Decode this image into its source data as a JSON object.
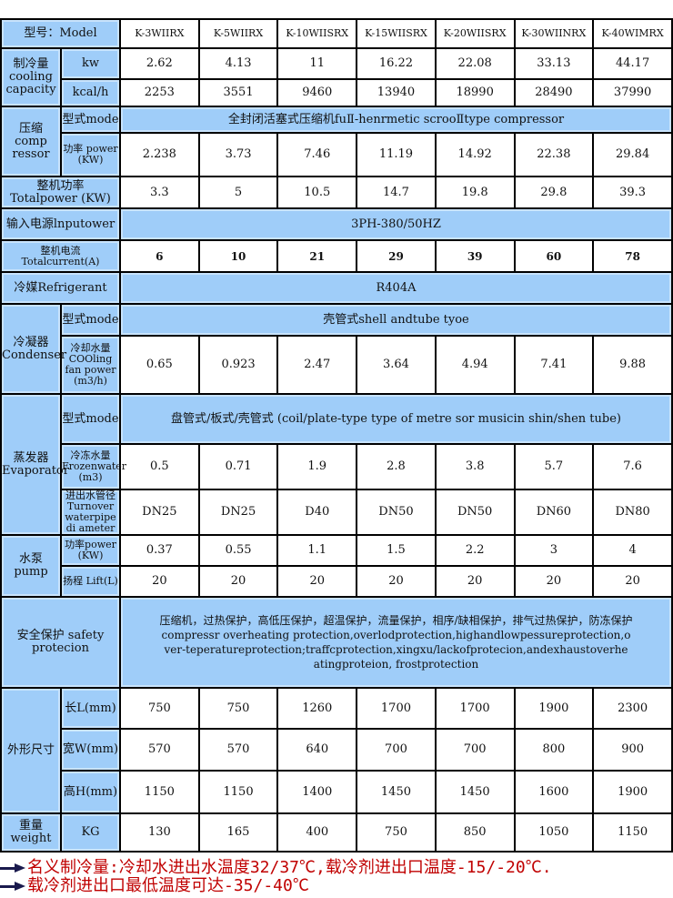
{
  "colors": {
    "header_fill": "#9fcdf9",
    "note_text": "#c00000",
    "border": "#000000"
  },
  "header": {
    "label": "型号：Model",
    "models": [
      "K-3WIIRX",
      "K-5WIIRX",
      "K-10WIISRX",
      "K-15WIISRX",
      "K-20WIISRX",
      "K-30WIINRX",
      "K-40WIMRX"
    ]
  },
  "cooling": {
    "label": "制冷量 cooling capacity",
    "kw_label": "kw",
    "kw": [
      "2.62",
      "4.13",
      "11",
      "16.22",
      "22.08",
      "33.13",
      "44.17"
    ],
    "kcal_label": "kcal/h",
    "kcal": [
      "2253",
      "3551",
      "9460",
      "13940",
      "18990",
      "28490",
      "37990"
    ]
  },
  "compressor": {
    "label": "压缩 comp ressor",
    "mode_label": "型式mode",
    "mode": "全封闭活塞式压缩机fuⅡ-henrmetic scrooⅡtype compressor",
    "power_label": "功率 power (KW)",
    "power": [
      "2.238",
      "3.73",
      "7.46",
      "11.19",
      "14.92",
      "22.38",
      "29.84"
    ]
  },
  "total_power": {
    "label": "整机功率 Totalpower (KW)",
    "values": [
      "3.3",
      "5",
      "10.5",
      "14.7",
      "19.8",
      "29.8",
      "39.3"
    ]
  },
  "input_power": {
    "label": "输入电源lnputower",
    "value": "3PH-380/50HZ"
  },
  "total_current": {
    "label": "整机电流Totalcurrent(A)",
    "values": [
      "6",
      "10",
      "21",
      "29",
      "39",
      "60",
      "78"
    ]
  },
  "refrigerant": {
    "label": "冷媒Refrigerant",
    "value": "R404A"
  },
  "condenser": {
    "label": "冷凝器 Condenser",
    "mode_label": "型式mode",
    "mode": "壳管式shell andtube tyoe",
    "water_label": "冷却水量 COOling fan power (m3/h)",
    "water": [
      "0.65",
      "0.923",
      "2.47",
      "3.64",
      "4.94",
      "7.41",
      "9.88"
    ]
  },
  "evaporator": {
    "label": "蒸发器 Evaporator",
    "mode_label": "型式mode",
    "mode": "盘管式/板式/壳管式 (coil/plate-type type of metre sor musicin shin/shen tube)",
    "frozen_label": "冷冻水量 Frozenwater (m3)",
    "frozen": [
      "0.5",
      "0.71",
      "1.9",
      "2.8",
      "3.8",
      "5.7",
      "7.6"
    ],
    "pipe_label": "进出水管径 Turnover waterpipe di ameter",
    "pipe": [
      "DN25",
      "DN25",
      "D40",
      "DN50",
      "DN50",
      "DN60",
      "DN80"
    ]
  },
  "pump": {
    "label": "水泵 pump",
    "power_label": "功率power (KW)",
    "power": [
      "0.37",
      "0.55",
      "1.1",
      "1.5",
      "2.2",
      "3",
      "4"
    ],
    "lift_label": "扬程 Lift(L)",
    "lift": [
      "20",
      "20",
      "20",
      "20",
      "20",
      "20",
      "20"
    ]
  },
  "safety": {
    "label": "安全保护 safety protecion",
    "value_cn": "压缩机，过热保护，高低压保护，超温保护，流量保护，相序/缺相保护，排气过热保护，防冻保护",
    "value_en": "compressr overheating protection,overlodprotection,highandlowpessureprotection,over-teperatureprotection;traffcprotection,xingxu/lackofprotecion,andexhaustoverheatingproteion,     frostprotection"
  },
  "dimensions": {
    "label": "外形尺寸",
    "length_label": "长L(mm)",
    "length": [
      "750",
      "750",
      "1260",
      "1700",
      "1700",
      "1900",
      "2300"
    ],
    "width_label": "宽W(mm)",
    "width": [
      "570",
      "570",
      "640",
      "700",
      "700",
      "800",
      "900"
    ],
    "height_label": "高H(mm)",
    "height": [
      "1150",
      "1150",
      "1400",
      "1450",
      "1450",
      "1600",
      "1900"
    ]
  },
  "weight": {
    "label": "重量 weight",
    "unit": "KG",
    "values": [
      "130",
      "165",
      "400",
      "750",
      "850",
      "1050",
      "1150"
    ]
  },
  "notes": [
    "名义制冷量:冷却水进出水温度32/37℃,载冷剂进出口温度-15/-20℃.",
    "载冷剂进出口最低温度可达-35/-40℃"
  ],
  "icons": {
    "note_bullet": "arrow-right-icon"
  }
}
